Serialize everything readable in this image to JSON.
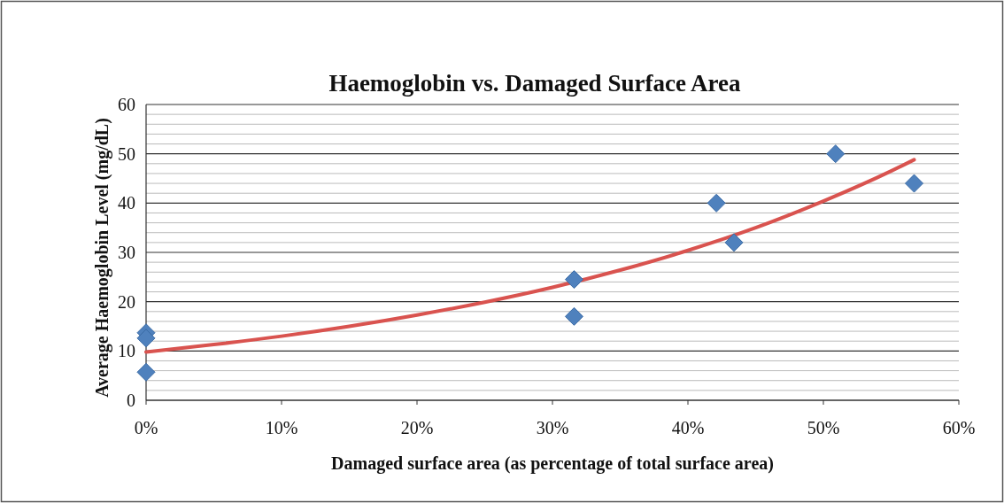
{
  "chart_data": {
    "type": "scatter",
    "title": "Haemoglobin vs. Damaged Surface Area",
    "xlabel": "Damaged surface area (as percentage of total surface area)",
    "ylabel": "Average Haemoglobin Level (mg/dL)",
    "xlim": [
      0,
      60
    ],
    "xticks": [
      {
        "value": 0,
        "label": "0%"
      },
      {
        "value": 10,
        "label": "10%"
      },
      {
        "value": 20,
        "label": "20%"
      },
      {
        "value": 30,
        "label": "30%"
      },
      {
        "value": 40,
        "label": "40%"
      },
      {
        "value": 50,
        "label": "50%"
      },
      {
        "value": 60,
        "label": "60%"
      }
    ],
    "ylim": [
      0,
      60
    ],
    "yticks": [
      0,
      {
        "value": 2,
        "label": null
      },
      {
        "value": 4,
        "label": null
      },
      {
        "value": 6,
        "label": null
      },
      {
        "value": 8,
        "label": null
      },
      10,
      {
        "value": 12,
        "label": null
      },
      {
        "value": 14,
        "label": null
      },
      {
        "value": 16,
        "label": null
      },
      {
        "value": 18,
        "label": null
      },
      20,
      {
        "value": 22,
        "label": null
      },
      {
        "value": 24,
        "label": null
      },
      {
        "value": 26,
        "label": null
      },
      {
        "value": 28,
        "label": null
      },
      30,
      {
        "value": 32,
        "label": null
      },
      {
        "value": 34,
        "label": null
      },
      {
        "value": 36,
        "label": null
      },
      {
        "value": 38,
        "label": null
      },
      40,
      {
        "value": 42,
        "label": null
      },
      {
        "value": 44,
        "label": null
      },
      {
        "value": 46,
        "label": null
      },
      {
        "value": 48,
        "label": null
      },
      50,
      {
        "value": 52,
        "label": null
      },
      {
        "value": 54,
        "label": null
      },
      {
        "value": 56,
        "label": null
      },
      {
        "value": 58,
        "label": null
      },
      60
    ],
    "grid": "y",
    "series": [
      {
        "marker": "diamond",
        "color": "#4f81bd",
        "x": [
          0,
          0,
          0,
          31.6,
          31.6,
          42.1,
          43.4,
          50.9,
          56.7
        ],
        "values": [
          13.7,
          12.6,
          5.7,
          24.5,
          17,
          40,
          32,
          50,
          44
        ]
      },
      {
        "type": "line",
        "color": "#d9534f",
        "line_style": "solid",
        "x": [
          0,
          5,
          10,
          15,
          20,
          25,
          30,
          35,
          40,
          45,
          50,
          55,
          56.7
        ],
        "values": [
          9.8,
          11.3,
          13,
          15,
          17.3,
          19.9,
          22.9,
          26.4,
          30.4,
          35,
          40.4,
          46.5,
          48.8
        ]
      }
    ]
  }
}
